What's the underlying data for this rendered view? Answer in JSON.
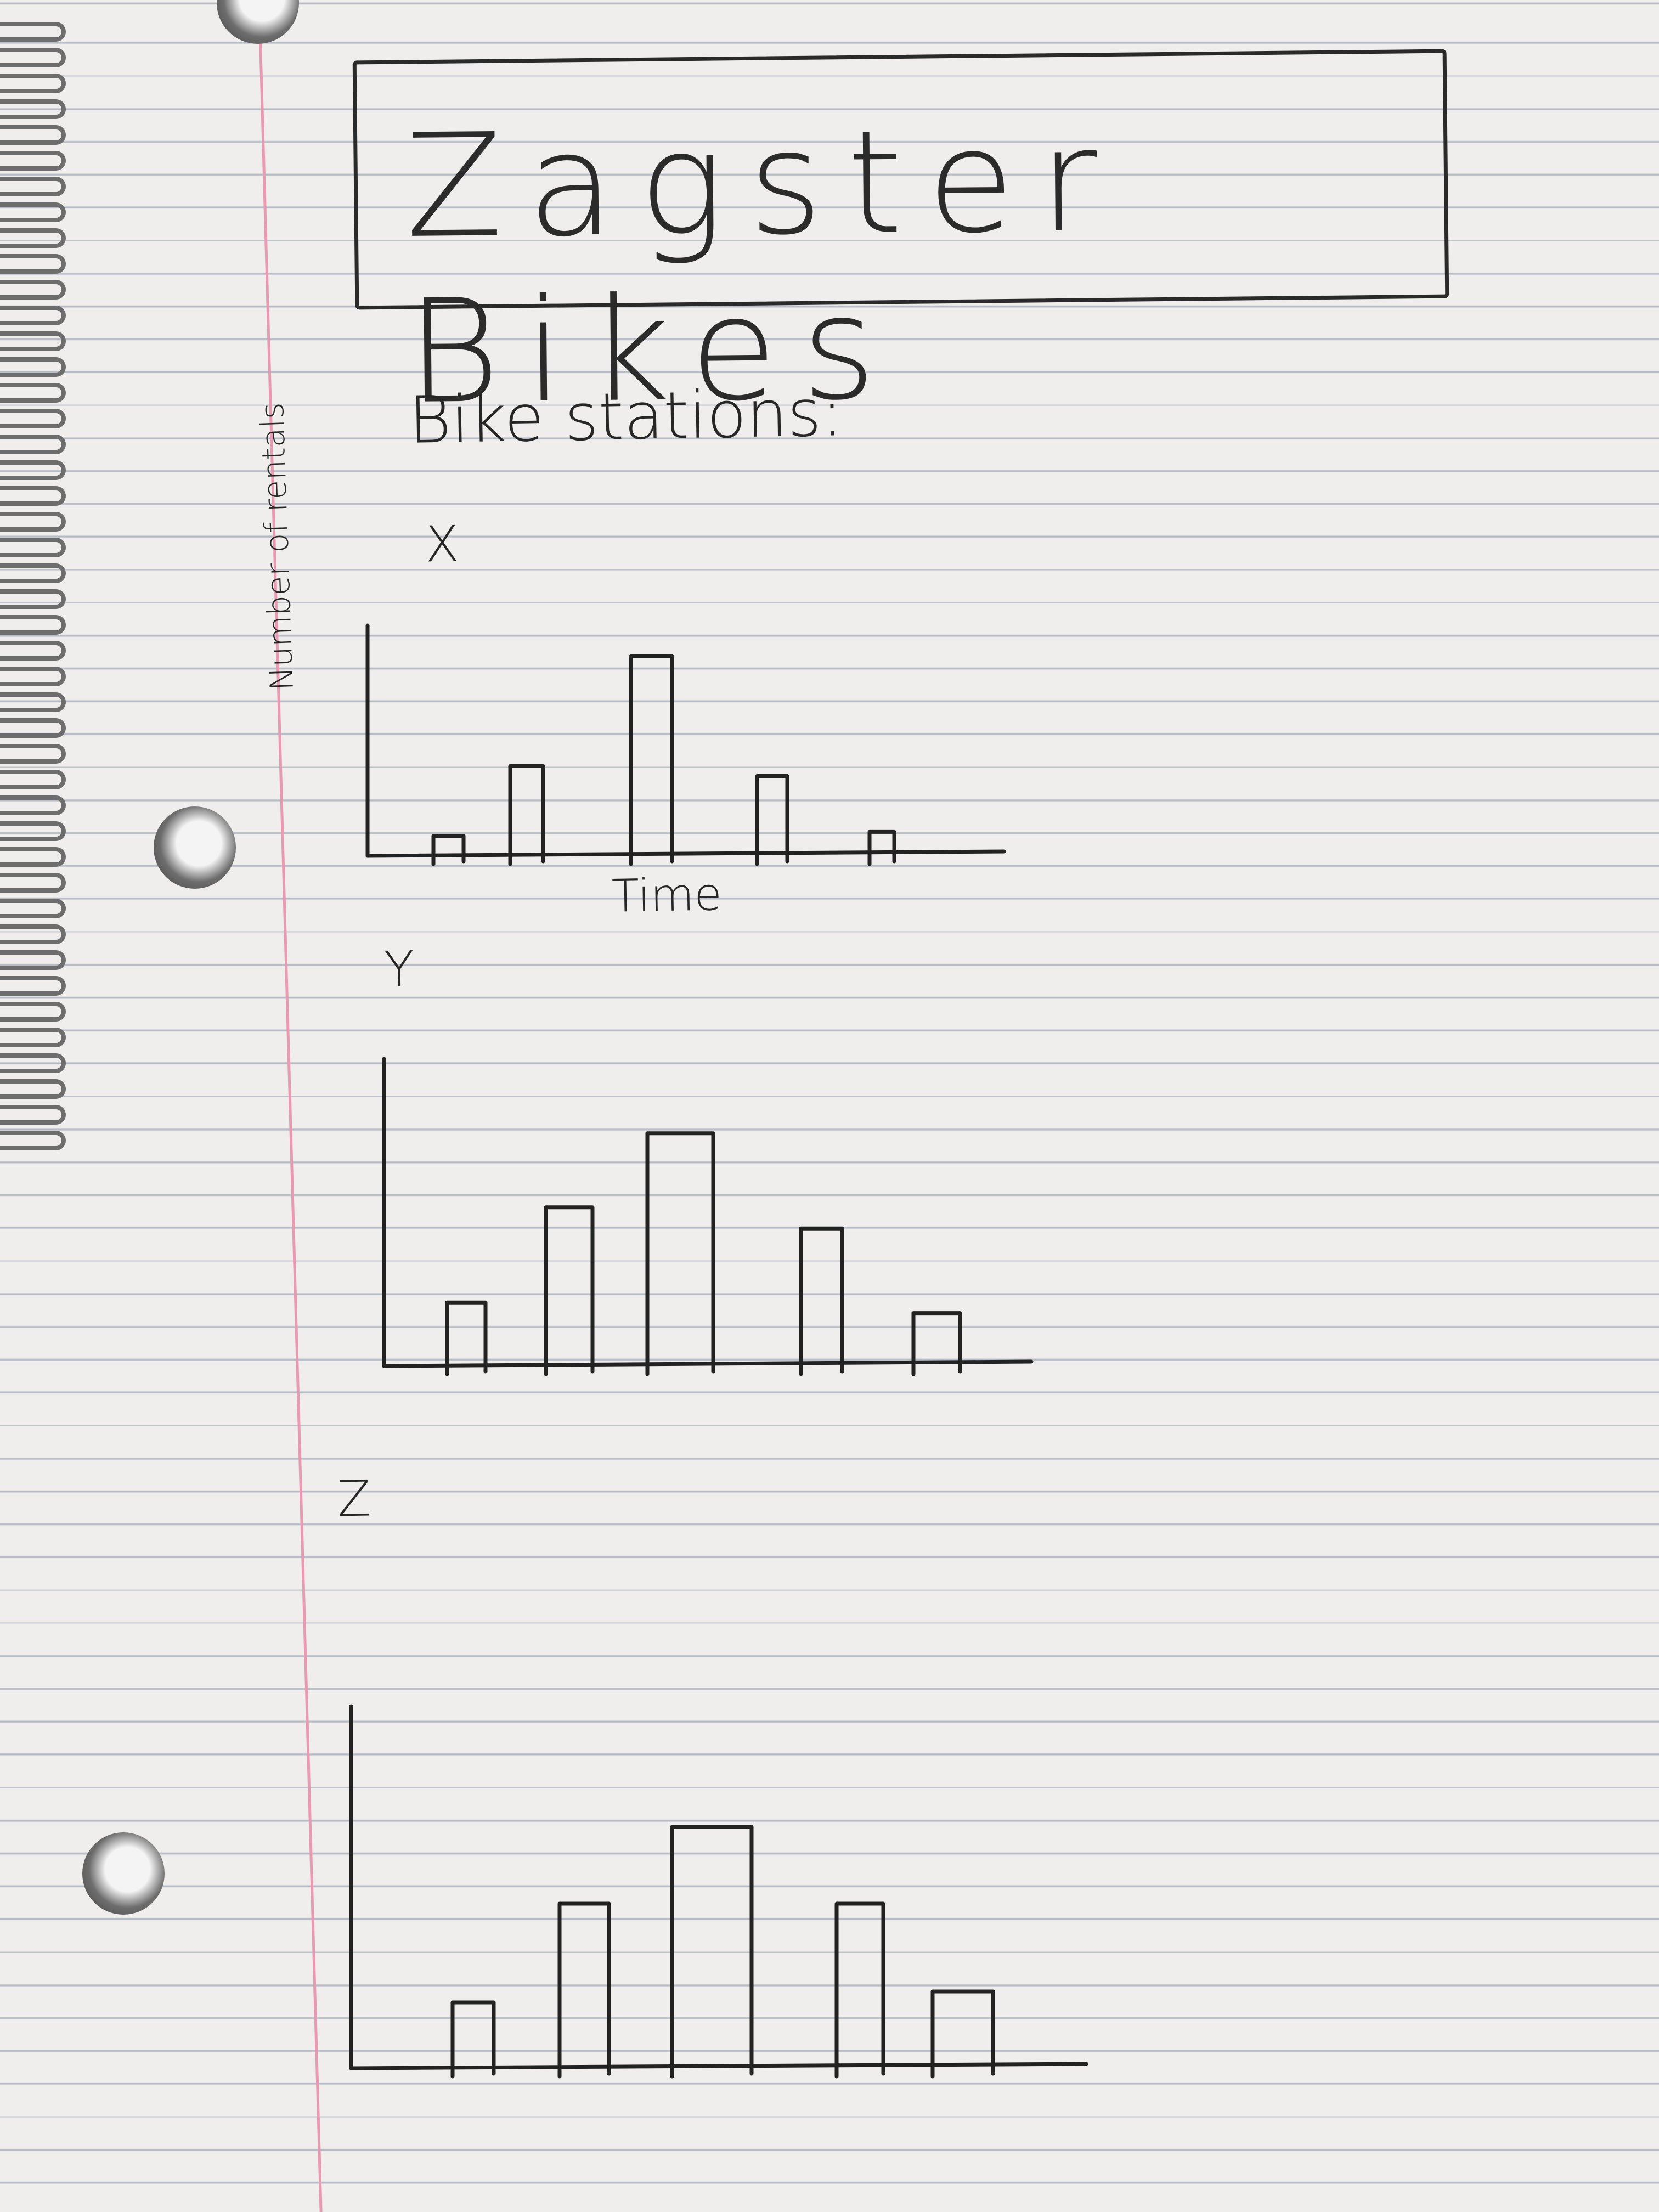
{
  "page": {
    "title": "Zagster Bikes",
    "subtitle": "Bike stations:"
  },
  "colors": {
    "paper": "#efeeec",
    "ruled_line": "#b7bcc6",
    "margin_line": "#e79ab2",
    "ink": "#222222"
  },
  "chart_data": [
    {
      "type": "bar",
      "title": "X",
      "xlabel": "Time",
      "ylabel": "Number of rentals",
      "categories": [
        "",
        "",
        "",
        "",
        ""
      ],
      "values": [
        1,
        4.5,
        10,
        4,
        1.2
      ],
      "ylim": [
        0,
        11
      ]
    },
    {
      "type": "bar",
      "title": "Y",
      "xlabel": "",
      "ylabel": "",
      "categories": [
        "",
        "",
        "",
        "",
        ""
      ],
      "values": [
        3,
        7.5,
        11,
        6.5,
        2.5
      ],
      "ylim": [
        0,
        14
      ]
    },
    {
      "type": "bar",
      "title": "Z",
      "xlabel": "",
      "ylabel": "",
      "categories": [
        "",
        "",
        "",
        "",
        ""
      ],
      "values": [
        3,
        7.5,
        11,
        7.5,
        3.5
      ],
      "ylim": [
        0,
        16
      ]
    }
  ]
}
